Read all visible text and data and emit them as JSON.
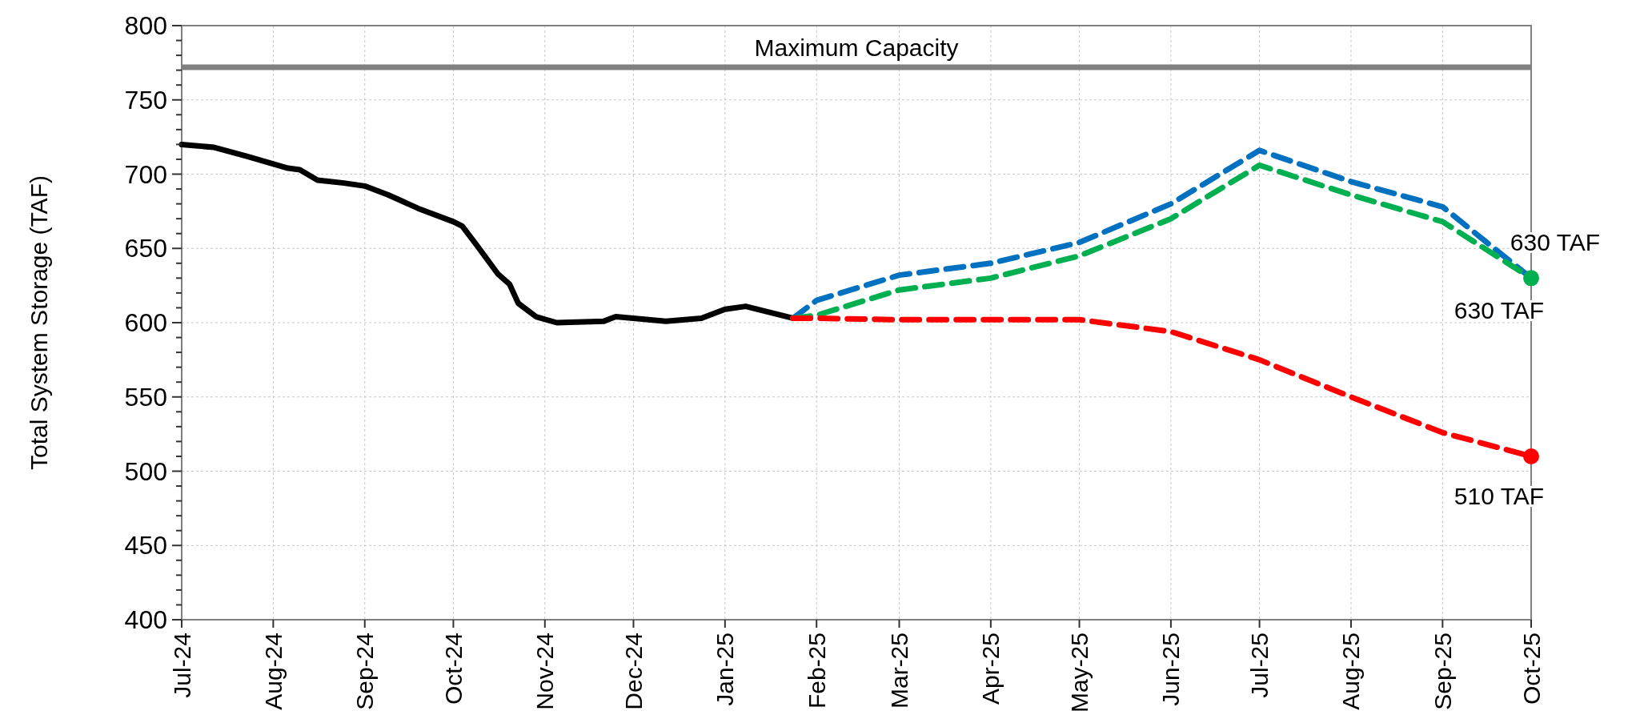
{
  "chart_data": {
    "type": "line",
    "ylabel": "Total System Storage (TAF)",
    "xlim": [
      "2024-07-01",
      "2025-10-01"
    ],
    "xticks": [
      {
        "value": "2024-07-01",
        "label": "Jul-24"
      },
      {
        "value": "2024-08-01",
        "label": "Aug-24"
      },
      {
        "value": "2024-09-01",
        "label": "Sep-24"
      },
      {
        "value": "2024-10-01",
        "label": "Oct-24"
      },
      {
        "value": "2024-11-01",
        "label": "Nov-24"
      },
      {
        "value": "2024-12-01",
        "label": "Dec-24"
      },
      {
        "value": "2025-01-01",
        "label": "Jan-25"
      },
      {
        "value": "2025-02-01",
        "label": "Feb-25"
      },
      {
        "value": "2025-03-01",
        "label": "Mar-25"
      },
      {
        "value": "2025-04-01",
        "label": "Apr-25"
      },
      {
        "value": "2025-05-01",
        "label": "May-25"
      },
      {
        "value": "2025-06-01",
        "label": "Jun-25"
      },
      {
        "value": "2025-07-01",
        "label": "Jul-25"
      },
      {
        "value": "2025-08-01",
        "label": "Aug-25"
      },
      {
        "value": "2025-09-01",
        "label": "Sep-25"
      },
      {
        "value": "2025-10-01",
        "label": "Oct-25"
      }
    ],
    "ylim": [
      400,
      800
    ],
    "yticks": [
      400,
      {
        "value": 410,
        "label": null
      },
      {
        "value": 420,
        "label": null
      },
      {
        "value": 430,
        "label": null
      },
      {
        "value": 440,
        "label": null
      },
      450,
      {
        "value": 460,
        "label": null
      },
      {
        "value": 470,
        "label": null
      },
      {
        "value": 480,
        "label": null
      },
      {
        "value": 490,
        "label": null
      },
      500,
      {
        "value": 510,
        "label": null
      },
      {
        "value": 520,
        "label": null
      },
      {
        "value": 530,
        "label": null
      },
      {
        "value": 540,
        "label": null
      },
      550,
      {
        "value": 560,
        "label": null
      },
      {
        "value": 570,
        "label": null
      },
      {
        "value": 580,
        "label": null
      },
      {
        "value": 590,
        "label": null
      },
      600,
      {
        "value": 610,
        "label": null
      },
      {
        "value": 620,
        "label": null
      },
      {
        "value": 630,
        "label": null
      },
      {
        "value": 640,
        "label": null
      },
      650,
      {
        "value": 660,
        "label": null
      },
      {
        "value": 670,
        "label": null
      },
      {
        "value": 680,
        "label": null
      },
      {
        "value": 690,
        "label": null
      },
      700,
      {
        "value": 710,
        "label": null
      },
      {
        "value": 720,
        "label": null
      },
      {
        "value": 730,
        "label": null
      },
      {
        "value": 740,
        "label": null
      },
      750,
      {
        "value": 760,
        "label": null
      },
      {
        "value": 770,
        "label": null
      },
      {
        "value": 780,
        "label": null
      },
      {
        "value": 790,
        "label": null
      },
      800
    ],
    "grid": true,
    "series": [
      {
        "color": "#000000",
        "line_style": "solid",
        "x": [
          "2024-07-01",
          "2024-07-12",
          "2024-07-23",
          "2024-08-06",
          "2024-08-10",
          "2024-08-16",
          "2024-08-25",
          "2024-09-01",
          "2024-09-09",
          "2024-09-19",
          "2024-10-01",
          "2024-10-04",
          "2024-10-09",
          "2024-10-16",
          "2024-10-20",
          "2024-10-23",
          "2024-10-29",
          "2024-11-05",
          "2024-11-21",
          "2024-11-25",
          "2024-12-12",
          "2024-12-24",
          "2025-01-01",
          "2025-01-08",
          "2025-01-24"
        ],
        "values": [
          720,
          718,
          712,
          704,
          703,
          696,
          694,
          692,
          686,
          677,
          668,
          665,
          652,
          633,
          626,
          613,
          604,
          600,
          601,
          604,
          601,
          603,
          609,
          611,
          603
        ]
      },
      {
        "color": "#0070c0",
        "line_style": "dashed",
        "x": [
          "2025-01-24",
          "2025-02-01",
          "2025-03-01",
          "2025-04-01",
          "2025-05-01",
          "2025-06-01",
          "2025-07-01",
          "2025-08-01",
          "2025-09-01",
          "2025-10-01"
        ],
        "values": [
          603,
          615,
          632,
          640,
          654,
          680,
          716,
          695,
          678,
          630
        ]
      },
      {
        "color": "#00b050",
        "line_style": "dashed",
        "x": [
          "2025-01-24",
          "2025-02-01",
          "2025-03-01",
          "2025-04-01",
          "2025-05-01",
          "2025-06-01",
          "2025-07-01",
          "2025-08-01",
          "2025-09-01",
          "2025-10-01"
        ],
        "values": [
          603,
          605,
          622,
          630,
          645,
          670,
          706,
          686,
          668,
          630
        ]
      },
      {
        "color": "#ff0000",
        "line_style": "dashed",
        "x": [
          "2025-01-24",
          "2025-02-01",
          "2025-03-01",
          "2025-04-01",
          "2025-05-01",
          "2025-06-01",
          "2025-07-01",
          "2025-08-01",
          "2025-09-01",
          "2025-10-01"
        ],
        "values": [
          603,
          603,
          602,
          602,
          602,
          594,
          575,
          550,
          526,
          510
        ]
      },
      {
        "type": "scatter",
        "marker": "circle",
        "color": "#00b050",
        "x": [
          "2025-10-01"
        ],
        "values": [
          630
        ]
      },
      {
        "type": "scatter",
        "marker": "circle",
        "color": "#ff0000",
        "x": [
          "2025-10-01"
        ],
        "values": [
          510
        ]
      }
    ],
    "ref_lines": [
      {
        "axis": "y",
        "value": 772,
        "label": "Maximum Capacity",
        "color": "#808080"
      }
    ],
    "annotations": [
      {
        "text": "630 TAF",
        "x": "2025-10-01",
        "y": 630
      },
      {
        "text": "630 TAF",
        "x": "2025-10-01",
        "y": 630
      },
      {
        "text": "510 TAF",
        "x": "2025-10-01",
        "y": 510
      }
    ]
  }
}
